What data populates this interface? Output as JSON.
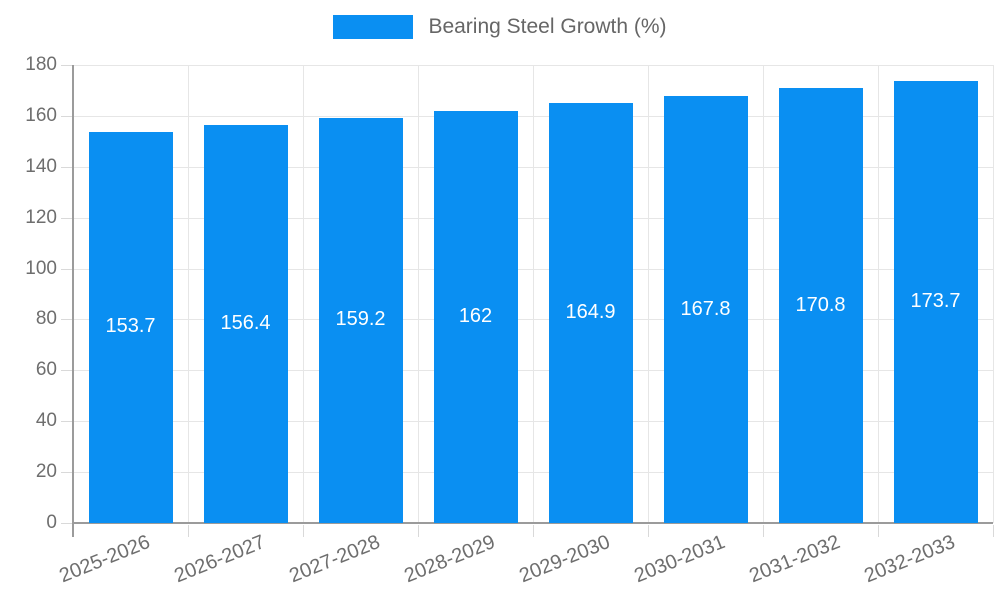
{
  "legend": {
    "label": "Bearing Steel Growth (%)"
  },
  "chart_data": {
    "type": "bar",
    "title": "Bearing Steel Growth (%)",
    "categories": [
      "2025-2026",
      "2026-2027",
      "2027-2028",
      "2028-2029",
      "2029-2030",
      "2030-2031",
      "2031-2032",
      "2032-2033"
    ],
    "values": [
      153.7,
      156.4,
      159.2,
      162,
      164.9,
      167.8,
      170.8,
      173.7
    ],
    "value_labels": [
      "153.7",
      "156.4",
      "159.2",
      "162",
      "164.9",
      "167.8",
      "170.8",
      "173.7"
    ],
    "series_name": "Bearing Steel Growth (%)",
    "xlabel": "",
    "ylabel": "",
    "ylim": [
      0,
      180
    ],
    "ytick_step": 20,
    "ytick_labels": [
      "0",
      "20",
      "40",
      "60",
      "80",
      "100",
      "120",
      "140",
      "160",
      "180"
    ],
    "grid": true,
    "legend_position": "top",
    "colors": {
      "bar": "#0a8ff2",
      "value_label": "#ffffff",
      "axis_text": "#6e6e6e",
      "legend_text": "#666666",
      "gridline": "#e6e6e6",
      "axis_line": "#9b9b9b",
      "background": "#ffffff"
    }
  }
}
